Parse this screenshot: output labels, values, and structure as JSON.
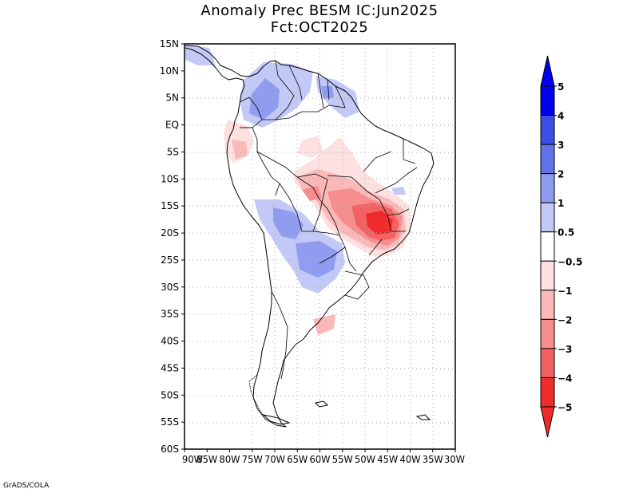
{
  "header": {
    "title_line1": "Anomaly Prec BESM IC:Jun2025",
    "title_line2": "Fct:OCT2025"
  },
  "map": {
    "lat_labels": [
      "15N",
      "10N",
      "5N",
      "EQ",
      "5S",
      "10S",
      "15S",
      "20S",
      "25S",
      "30S",
      "35S",
      "40S",
      "45S",
      "50S",
      "55S",
      "60S"
    ],
    "lon_labels": [
      "90W",
      "85W",
      "80W",
      "75W",
      "70W",
      "65W",
      "60W",
      "55W",
      "50W",
      "45W",
      "40W",
      "35W",
      "30W"
    ],
    "lat_values": [
      15,
      10,
      5,
      0,
      -5,
      -10,
      -15,
      -20,
      -25,
      -30,
      -35,
      -40,
      -45,
      -50,
      -55,
      -60
    ],
    "lon_values": [
      -90,
      -85,
      -80,
      -75,
      -70,
      -65,
      -60,
      -55,
      -50,
      -45,
      -40,
      -35,
      -30
    ]
  },
  "colorbar": {
    "labels": [
      "5",
      "4",
      "3",
      "2",
      "1",
      "0.5",
      "−0.5",
      "−1",
      "−2",
      "−3",
      "−4",
      "−5"
    ],
    "colors": [
      "#0000ee",
      "#3b4fe6",
      "#6272ea",
      "#8f9cf0",
      "#c3c9f6",
      "#ffffff",
      "#fde0e0",
      "#fab8b8",
      "#f78e8e",
      "#f26262",
      "#ef2b2b"
    ]
  },
  "footer": "GrADS/COLA"
}
